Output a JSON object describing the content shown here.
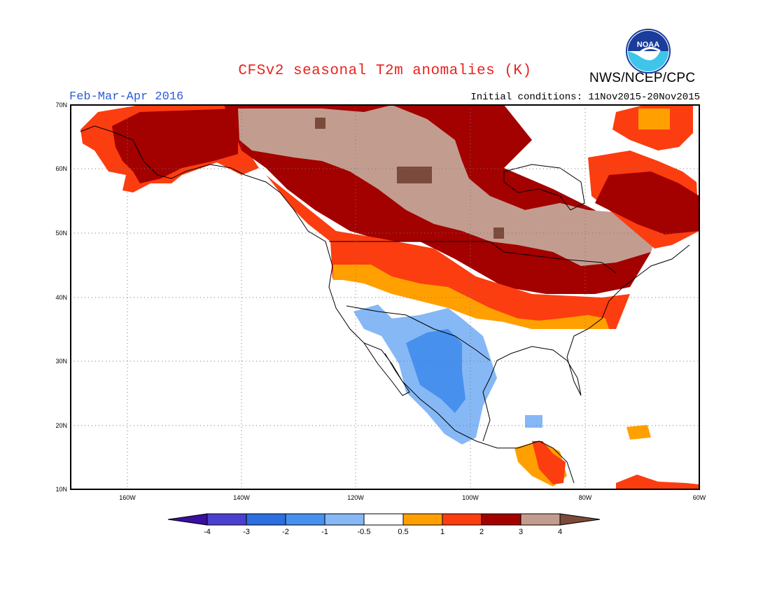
{
  "header": {
    "title": "CFSv2 seasonal T2m anomalies (K)",
    "season": "Feb-Mar-Apr 2016",
    "initial_conditions": "Initial conditions: 11Nov2015-20Nov2015",
    "agency": "NWS/NCEP/CPC",
    "logo_text": "NOAA"
  },
  "map": {
    "lon_range": [
      -170,
      -60
    ],
    "lat_range": [
      10,
      70
    ],
    "lat_labels": [
      "70N",
      "60N",
      "50N",
      "40N",
      "30N",
      "20N",
      "10N"
    ],
    "lon_labels": [
      "160W",
      "140W",
      "120W",
      "100W",
      "80W",
      "60W"
    ]
  },
  "colorbar": {
    "labels": [
      "-4",
      "-3",
      "-2",
      "-1",
      "-0.5",
      "0.5",
      "1",
      "2",
      "3",
      "4"
    ],
    "colors": [
      "#3a0ea0",
      "#4b3fd0",
      "#2b6fe0",
      "#4890ee",
      "#86b8f5",
      "#ffffff",
      "#ffa000",
      "#fc3d10",
      "#a30000",
      "#c39c90",
      "#7a4a3a"
    ]
  }
}
